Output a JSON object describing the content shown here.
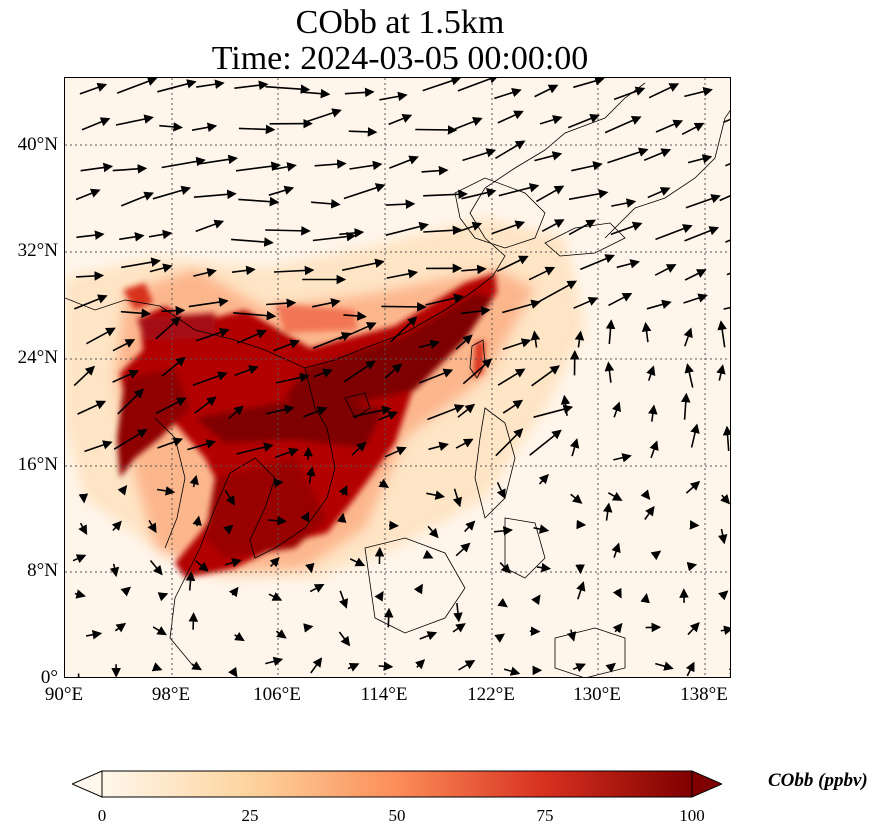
{
  "title": {
    "line1": "CObb at 1.5km",
    "line2": "Time: 2024-03-05 00:00:00"
  },
  "map": {
    "projection": "PlateCarree",
    "extent_lon": [
      90,
      140
    ],
    "extent_lat": [
      0,
      45
    ],
    "gridlines": "dotted",
    "field_name": "CObb",
    "arrows": "wind vectors (black)"
  },
  "axes": {
    "x_ticks": [
      "90°E",
      "98°E",
      "106°E",
      "114°E",
      "122°E",
      "130°E",
      "138°E"
    ],
    "y_ticks": [
      "0°",
      "8°N",
      "16°N",
      "24°N",
      "32°N",
      "40°N"
    ]
  },
  "colorbar": {
    "label": "CObb (ppbv)",
    "ticks": [
      "0",
      "25",
      "50",
      "75",
      "100"
    ],
    "range": [
      0,
      100
    ],
    "colormap": "OrRd",
    "extend": "both",
    "colors": [
      "#fff7ec",
      "#fdd49e",
      "#fc8d59",
      "#d7301f",
      "#7f0000"
    ]
  }
}
